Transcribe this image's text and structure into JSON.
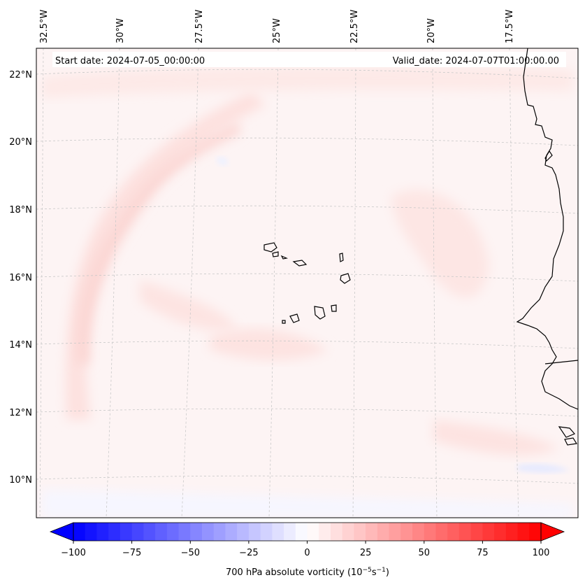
{
  "header": {
    "start_date": "Start date: 2024-07-05_00:00:00",
    "valid_date": "Valid_date: 2024-07-07T01:00:00.00"
  },
  "map": {
    "longitude_labels": [
      "32.5°W",
      "30°W",
      "27.5°W",
      "25°W",
      "22.5°W",
      "20°W",
      "17.5°W"
    ],
    "latitude_labels": [
      "22°N",
      "20°N",
      "18°N",
      "16°N",
      "14°N",
      "12°N",
      "10°N"
    ]
  },
  "colorbar": {
    "min": -100,
    "max": 100,
    "step": 5,
    "ticks": [
      "−100",
      "−75",
      "−50",
      "−25",
      "0",
      "25",
      "50",
      "75",
      "100"
    ],
    "label": "700 hPa absolute vorticity (10",
    "label_exp1": "−5",
    "label_mid": "s",
    "label_exp2": "−1",
    "label_end": ")",
    "colors": {
      "negative": "#0000ff",
      "zero": "#ffffff",
      "positive": "#ff0000"
    }
  },
  "colors": {
    "field_base": "#fdf4f4",
    "field_band": "#fde3e1",
    "field_weak_neg": "#f1f3ff",
    "coastline": "#000000",
    "grid": "#c8c8c8"
  }
}
